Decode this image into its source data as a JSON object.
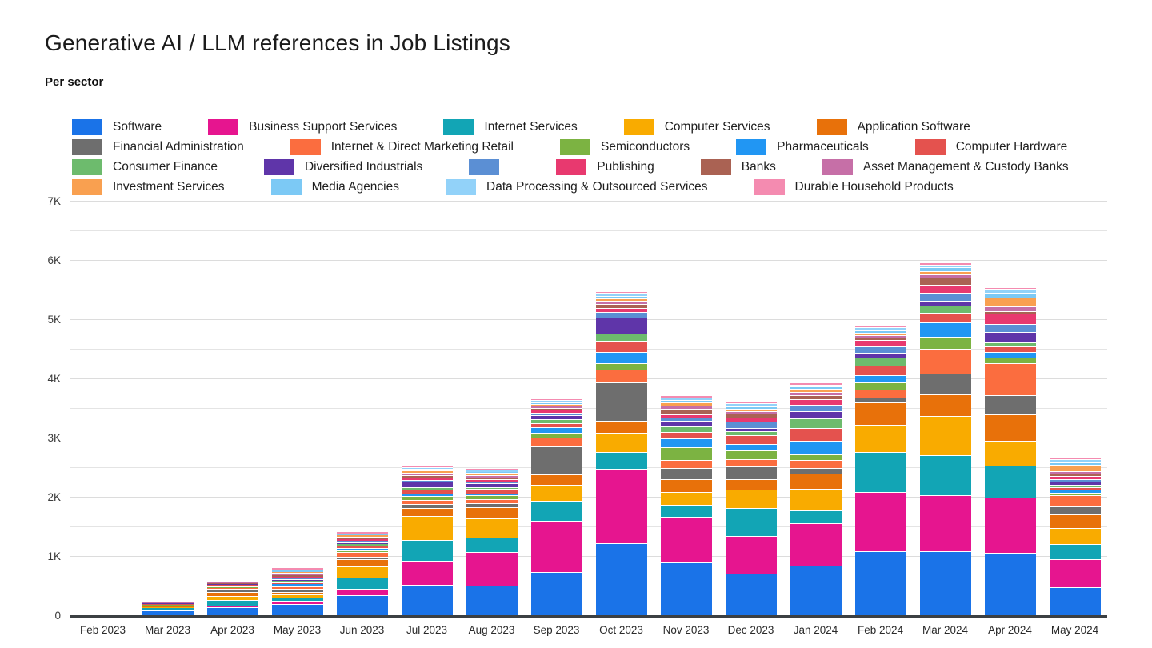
{
  "chart_data": {
    "type": "bar",
    "stacked": true,
    "title": "Generative AI / LLM references in Job Listings",
    "subtitle": "Per sector",
    "xlabel": "",
    "ylabel": "",
    "ylim": [
      0,
      7000
    ],
    "grid_interval": 500,
    "y_ticks": [
      "0",
      "1K",
      "2K",
      "3K",
      "4K",
      "5K",
      "6K",
      "7K"
    ],
    "legend_position": "top",
    "categories": [
      "Feb 2023",
      "Mar 2023",
      "Apr 2023",
      "May 2023",
      "Jun 2023",
      "Jul 2023",
      "Aug 2023",
      "Sep 2023",
      "Oct 2023",
      "Nov 2023",
      "Dec 2023",
      "Jan 2024",
      "Feb 2024",
      "Mar 2024",
      "Apr 2024",
      "May 2024"
    ],
    "series": [
      {
        "name": "Software",
        "color": "#1a73e8",
        "values": [
          6,
          100,
          150,
          200,
          345,
          530,
          520,
          740,
          1230,
          900,
          710,
          855,
          1100,
          1090,
          1065,
          490
        ]
      },
      {
        "name": "Business Support Services",
        "color": "#e6158f",
        "values": [
          3,
          15,
          20,
          60,
          120,
          400,
          555,
          870,
          1260,
          770,
          645,
          710,
          1000,
          955,
          935,
          475
        ]
      },
      {
        "name": "Internet Services",
        "color": "#12a5b5",
        "values": [
          2,
          20,
          100,
          45,
          185,
          360,
          250,
          340,
          280,
          210,
          465,
          215,
          665,
          675,
          540,
          250
        ]
      },
      {
        "name": "Computer Services",
        "color": "#f9ab00",
        "values": [
          2,
          18,
          75,
          55,
          185,
          395,
          320,
          260,
          320,
          220,
          310,
          365,
          465,
          660,
          420,
          275
        ]
      },
      {
        "name": "Application Software",
        "color": "#e8710a",
        "values": [
          1,
          10,
          55,
          50,
          120,
          135,
          200,
          180,
          210,
          215,
          180,
          265,
          380,
          365,
          445,
          230
        ]
      },
      {
        "name": "Financial Administration",
        "color": "#6e6e6e",
        "values": [
          1,
          8,
          60,
          45,
          45,
          70,
          60,
          470,
          650,
          180,
          220,
          90,
          75,
          345,
          330,
          135
        ]
      },
      {
        "name": "Internet & Direct Marketing Retail",
        "color": "#fb6d3f",
        "values": [
          1,
          12,
          15,
          40,
          75,
          70,
          70,
          160,
          210,
          140,
          125,
          135,
          145,
          420,
          535,
          190
        ]
      },
      {
        "name": "Semiconductors",
        "color": "#7cb342",
        "values": [
          1,
          8,
          30,
          25,
          35,
          70,
          60,
          80,
          110,
          220,
          140,
          100,
          120,
          210,
          90,
          40
        ]
      },
      {
        "name": "Pharmaceuticals",
        "color": "#2196f3",
        "values": [
          1,
          6,
          8,
          20,
          35,
          45,
          40,
          90,
          190,
          150,
          110,
          220,
          115,
          235,
          100,
          45
        ]
      },
      {
        "name": "Computer Hardware",
        "color": "#e4524e",
        "values": [
          1,
          8,
          12,
          30,
          45,
          60,
          70,
          70,
          190,
          100,
          145,
          220,
          160,
          165,
          100,
          50
        ]
      },
      {
        "name": "Consumer Finance",
        "color": "#6dbb6d",
        "values": [
          0,
          5,
          6,
          20,
          25,
          40,
          35,
          60,
          120,
          100,
          75,
          165,
          135,
          125,
          62,
          35
        ]
      },
      {
        "name": "Diversified Industrials",
        "color": "#5f35a9",
        "values": [
          0,
          4,
          6,
          30,
          35,
          90,
          65,
          80,
          270,
          100,
          58,
          125,
          90,
          80,
          170,
          55
        ]
      },
      {
        "name": "",
        "color": "#5b8fd4",
        "values": [
          0,
          2,
          4,
          25,
          20,
          35,
          30,
          40,
          90,
          45,
          105,
          110,
          110,
          135,
          140,
          45
        ]
      },
      {
        "name": "Publishing",
        "color": "#e8396f",
        "values": [
          0,
          4,
          5,
          25,
          22,
          45,
          40,
          45,
          80,
          60,
          70,
          90,
          110,
          135,
          180,
          55
        ]
      },
      {
        "name": "Banks",
        "color": "#aa6253",
        "values": [
          0,
          3,
          4,
          25,
          22,
          35,
          30,
          35,
          60,
          90,
          62,
          67,
          30,
          120,
          44,
          35
        ]
      },
      {
        "name": "Asset Management & Custody Banks",
        "color": "#c66fa7",
        "values": [
          0,
          3,
          18,
          35,
          28,
          45,
          40,
          35,
          50,
          55,
          44,
          53,
          45,
          58,
          80,
          45
        ]
      },
      {
        "name": "Investment Services",
        "color": "#f9a050",
        "values": [
          0,
          2,
          6,
          20,
          22,
          35,
          30,
          30,
          50,
          50,
          44,
          58,
          45,
          53,
          140,
          100
        ]
      },
      {
        "name": "Media Agencies",
        "color": "#7cc9f5",
        "values": [
          0,
          2,
          3,
          20,
          18,
          30,
          25,
          30,
          40,
          45,
          35,
          35,
          35,
          67,
          90,
          50
        ]
      },
      {
        "name": "Data Processing & Outsourced Services",
        "color": "#92d2f9",
        "values": [
          0,
          2,
          3,
          20,
          18,
          30,
          25,
          30,
          50,
          45,
          53,
          31,
          50,
          44,
          58,
          45
        ]
      },
      {
        "name": "Durable Household Products",
        "color": "#f48bb0",
        "values": [
          0,
          3,
          4,
          30,
          18,
          30,
          25,
          20,
          30,
          30,
          30,
          22,
          50,
          22,
          22,
          35
        ]
      }
    ]
  }
}
